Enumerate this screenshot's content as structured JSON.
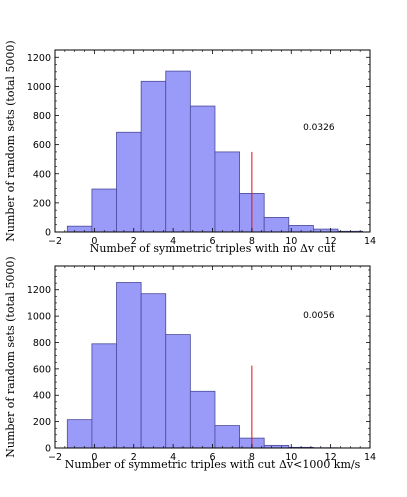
{
  "chart_data": [
    {
      "type": "bar",
      "ylabel": "Number of random sets (total 5000)",
      "xlabel": "Number of symmetric triples with no Δv cut",
      "xlim": [
        -2,
        14
      ],
      "ylim": [
        0,
        1250
      ],
      "xticks": [
        "−2",
        "0",
        "2",
        "4",
        "6",
        "8",
        "10",
        "12",
        "14"
      ],
      "yticks": [
        "0",
        "200",
        "400",
        "600",
        "800",
        "1000",
        "1200"
      ],
      "bin_width": 1.25,
      "bins": [
        {
          "x": -0.75,
          "value": 40
        },
        {
          "x": 0.5,
          "value": 295
        },
        {
          "x": 1.75,
          "value": 685
        },
        {
          "x": 3.0,
          "value": 1035
        },
        {
          "x": 4.25,
          "value": 1105
        },
        {
          "x": 5.5,
          "value": 865
        },
        {
          "x": 6.75,
          "value": 550
        },
        {
          "x": 8.0,
          "value": 265
        },
        {
          "x": 9.25,
          "value": 100
        },
        {
          "x": 10.5,
          "value": 45
        },
        {
          "x": 11.75,
          "value": 20
        },
        {
          "x": 13.0,
          "value": 5
        }
      ],
      "observed_line": {
        "x": 8,
        "y_top": 550,
        "color": "#e01010"
      },
      "annotation": "0.0326",
      "annotation_pos": {
        "x": 10.6,
        "y": 700
      },
      "bar_color": "#9a9af8",
      "edge_color": "#4a4a9a",
      "grid": false
    },
    {
      "type": "bar",
      "ylabel": "Number of random sets (total 5000)",
      "xlabel": "Number of symmetric triples with cut Δv<1000 km/s",
      "xlim": [
        -2,
        14
      ],
      "ylim": [
        0,
        1380
      ],
      "xticks": [
        "−2",
        "0",
        "2",
        "4",
        "6",
        "8",
        "10",
        "12",
        "14"
      ],
      "yticks": [
        "0",
        "200",
        "400",
        "600",
        "800",
        "1000",
        "1200"
      ],
      "bin_width": 1.25,
      "bins": [
        {
          "x": -0.75,
          "value": 215
        },
        {
          "x": 0.5,
          "value": 790
        },
        {
          "x": 1.75,
          "value": 1255
        },
        {
          "x": 3.0,
          "value": 1170
        },
        {
          "x": 4.25,
          "value": 860
        },
        {
          "x": 5.5,
          "value": 430
        },
        {
          "x": 6.75,
          "value": 170
        },
        {
          "x": 8.0,
          "value": 75
        },
        {
          "x": 9.25,
          "value": 20
        },
        {
          "x": 10.5,
          "value": 5
        },
        {
          "x": 11.75,
          "value": 2
        },
        {
          "x": 13.0,
          "value": 1
        }
      ],
      "observed_line": {
        "x": 8,
        "y_top": 625,
        "color": "#e01010"
      },
      "annotation": "0.0056",
      "annotation_pos": {
        "x": 10.6,
        "y": 985
      },
      "bar_color": "#9a9af8",
      "edge_color": "#4a4a9a",
      "grid": false
    }
  ]
}
